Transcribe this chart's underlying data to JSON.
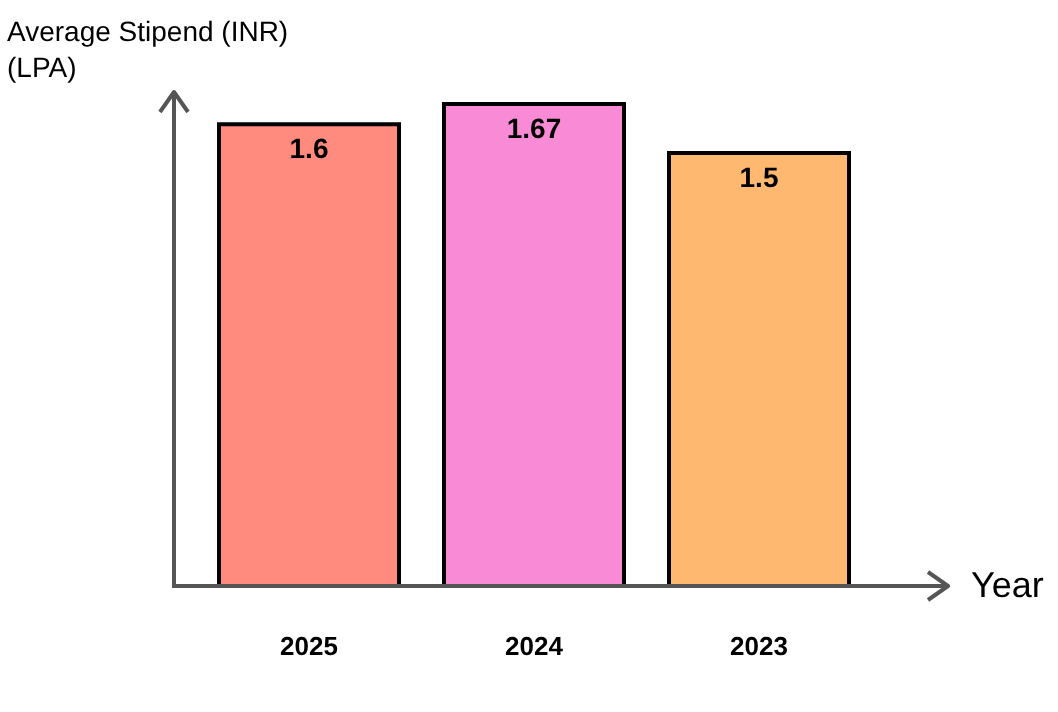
{
  "chart_data": {
    "type": "bar",
    "xlabel": "Year",
    "ylabel": "Average Stipend (INR)\n(LPA)",
    "categories": [
      "2025",
      "2024",
      "2023"
    ],
    "values": [
      1.6,
      1.67,
      1.5
    ],
    "colors": [
      "#ff8a7e",
      "#f98ad6",
      "#ffb870"
    ],
    "data_labels": true,
    "legend": false,
    "grid": false
  }
}
